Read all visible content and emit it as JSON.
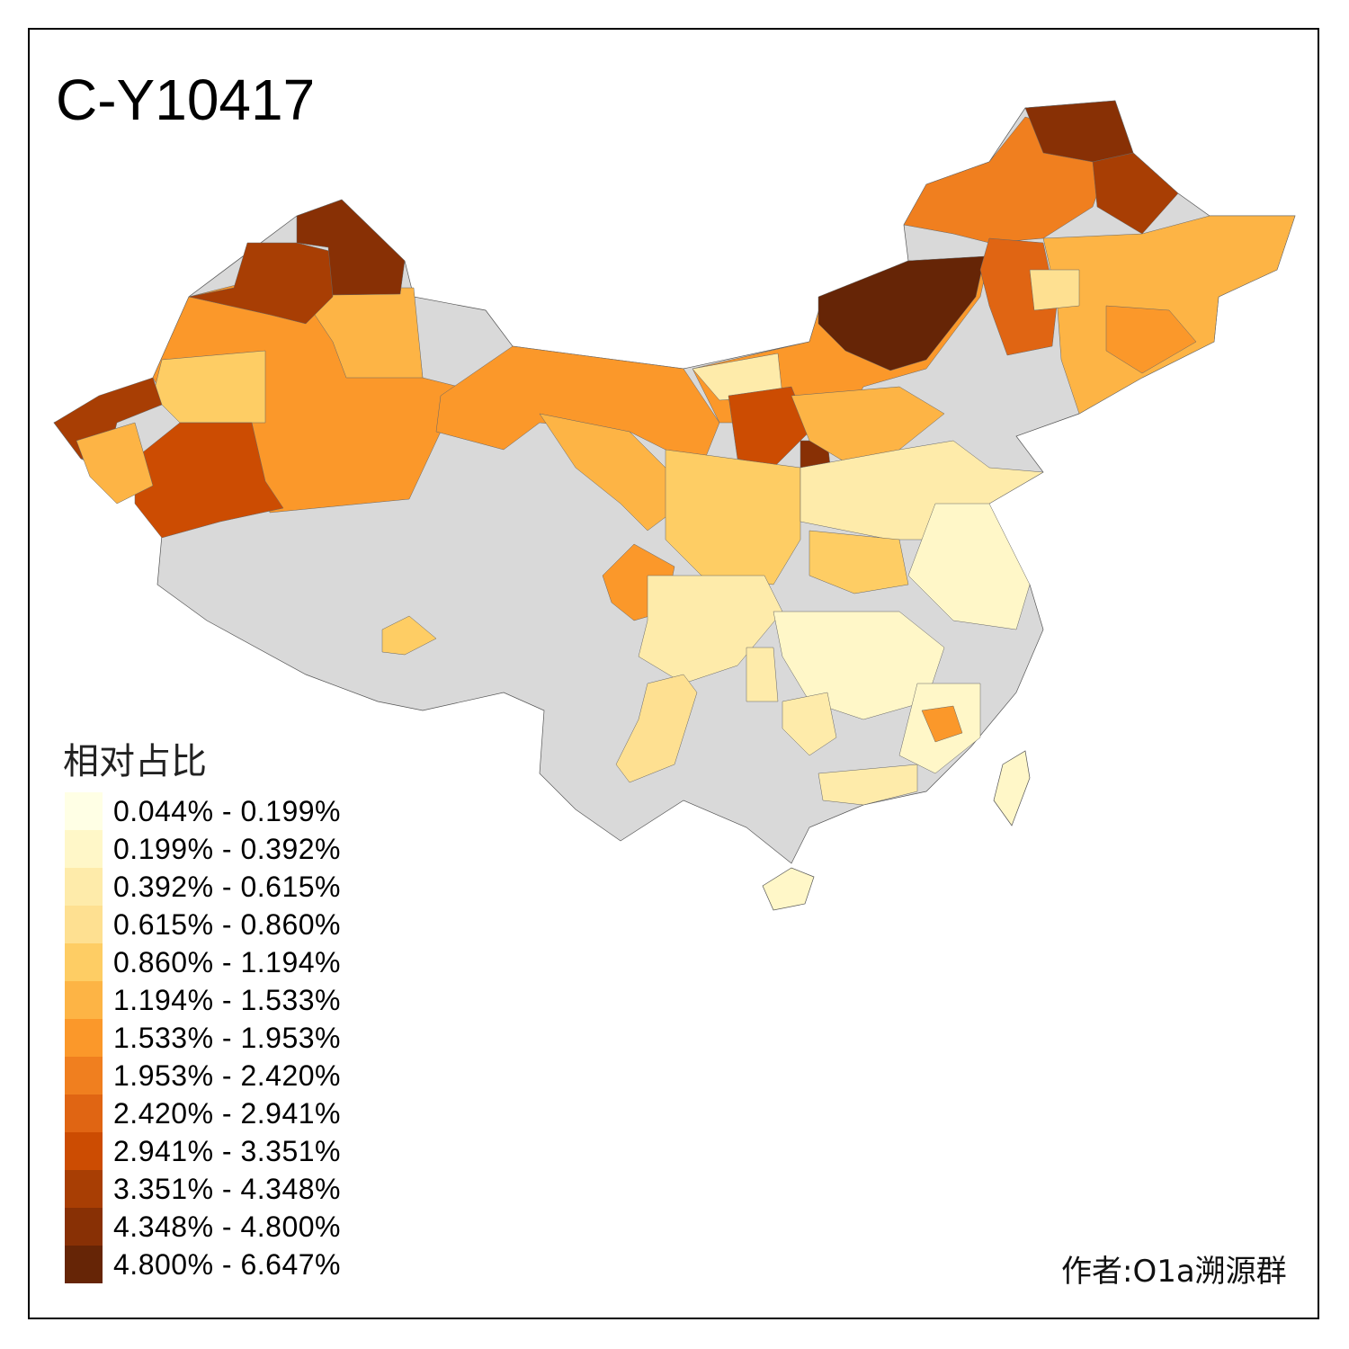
{
  "title": "C-Y10417",
  "legend": {
    "title": "相对占比",
    "items": [
      {
        "label": "0.044% - 0.199%",
        "color": "#FFFFE5"
      },
      {
        "label": "0.199% - 0.392%",
        "color": "#FFF7C8"
      },
      {
        "label": "0.392% - 0.615%",
        "color": "#FEEBAA"
      },
      {
        "label": "0.615% - 0.860%",
        "color": "#FEE091"
      },
      {
        "label": "0.860% - 1.194%",
        "color": "#FECD64"
      },
      {
        "label": "1.194% - 1.533%",
        "color": "#FDB445"
      },
      {
        "label": "1.533% - 1.953%",
        "color": "#FB982A"
      },
      {
        "label": "1.953% - 2.420%",
        "color": "#F07F1F"
      },
      {
        "label": "2.420% - 2.941%",
        "color": "#E06513"
      },
      {
        "label": "2.941% - 3.351%",
        "color": "#CC4C02"
      },
      {
        "label": "3.351% - 4.348%",
        "color": "#A83E04"
      },
      {
        "label": "4.348% - 4.800%",
        "color": "#883005"
      },
      {
        "label": "4.800% - 6.647%",
        "color": "#662506"
      }
    ]
  },
  "no_data_color": "#D9D9D9",
  "author": "作者:O1a溯源群"
}
